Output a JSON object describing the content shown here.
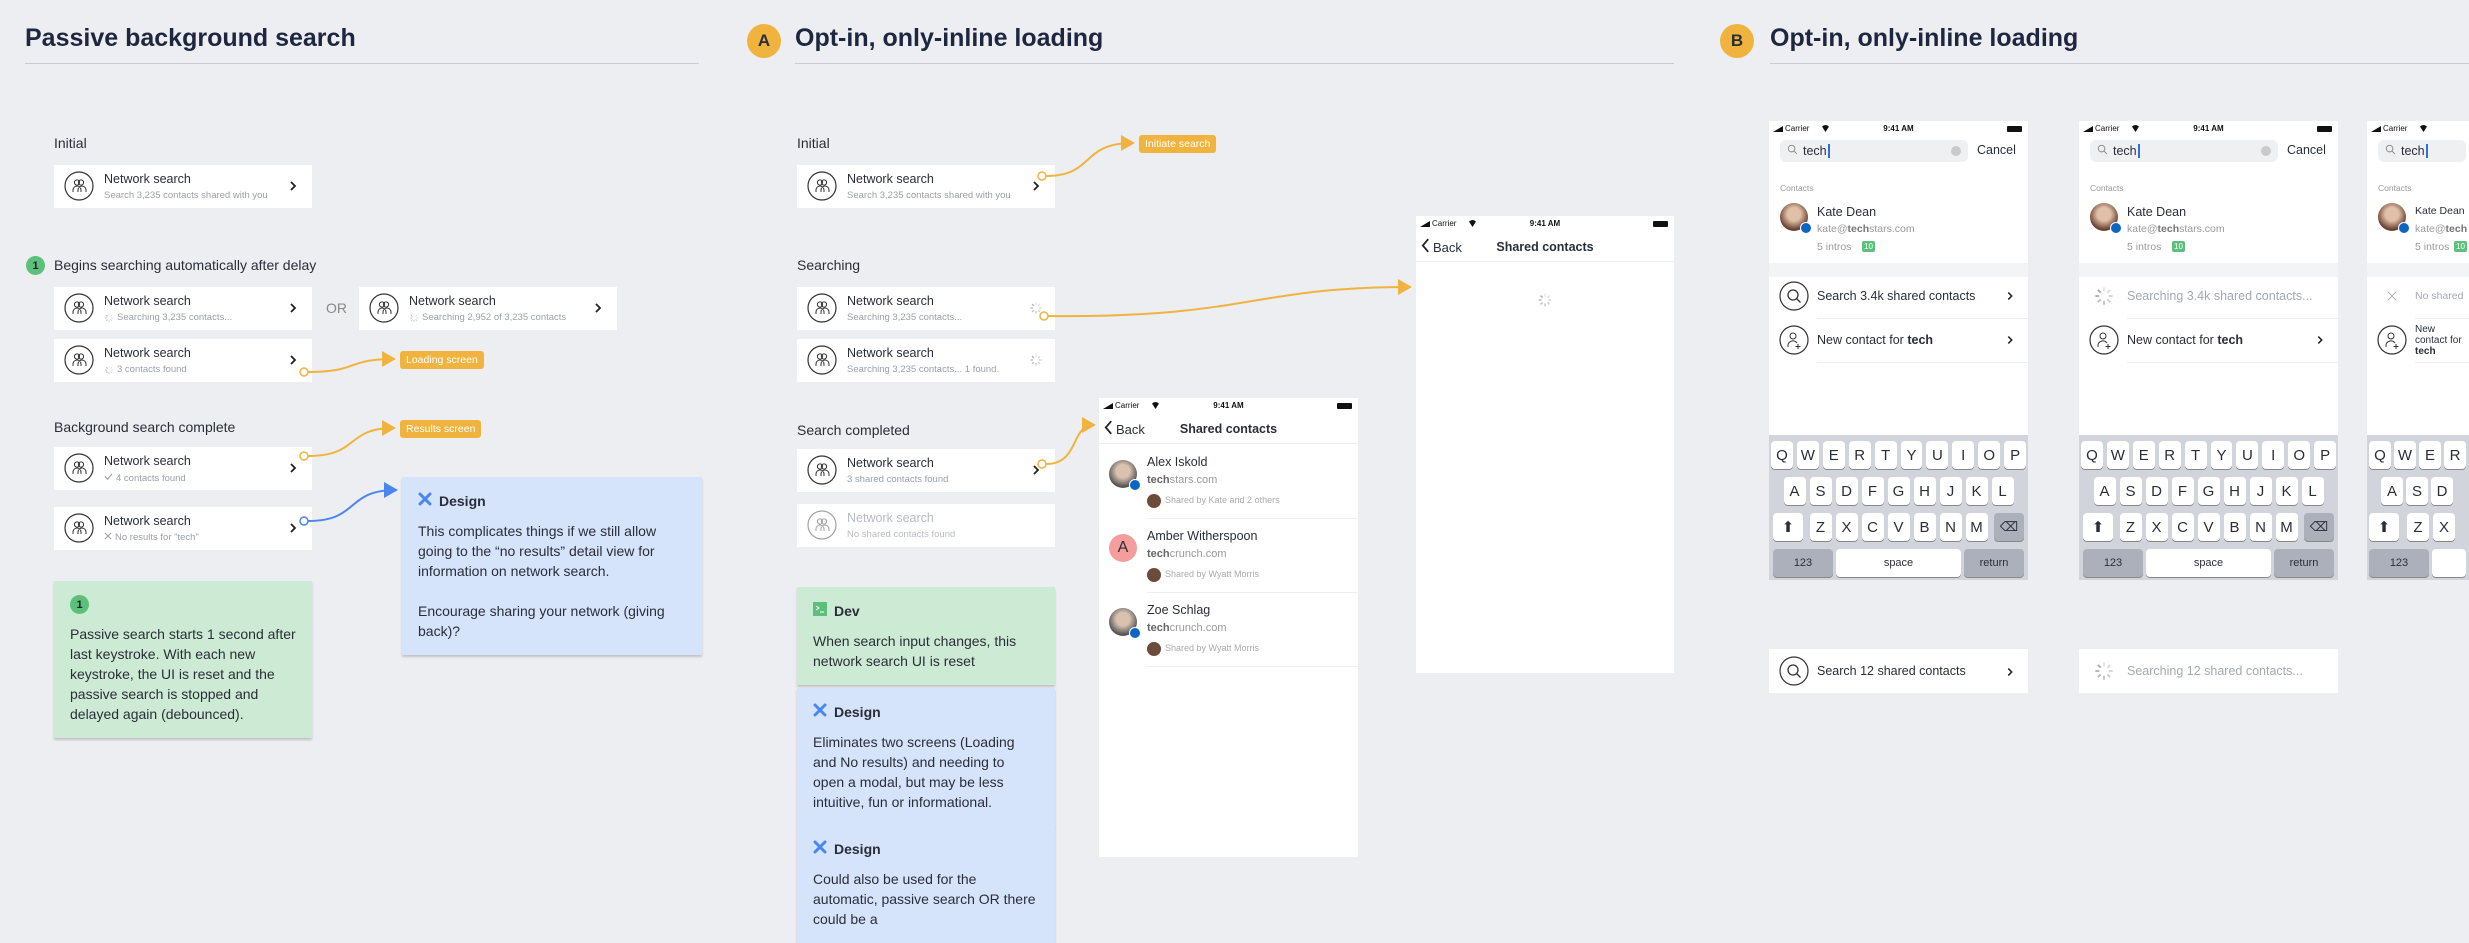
{
  "colors": {
    "background": "#edeef1",
    "accent_orange": "#f0b33e",
    "connector_blue": "#4a86f0",
    "note_green": "#cdebd4",
    "note_blue": "#d5e3fb",
    "step_green": "#5cc07a"
  },
  "sections": [
    {
      "title": "Passive background search"
    },
    {
      "badge": "A",
      "title": "Opt-in, only-inline loading"
    },
    {
      "badge": "B",
      "title": "Opt-in, only-inline loading"
    }
  ],
  "passive": {
    "initial_label": "Initial",
    "step_badge": "1",
    "delay_label": "Begins searching automatically after delay",
    "or_label": "OR",
    "complete_label": "Background search complete",
    "cards": [
      {
        "title": "Network search",
        "subtitle": "Search 3,235 contacts shared with you",
        "status_icon": "none",
        "trailing": "chevron"
      },
      {
        "title": "Network search",
        "subtitle": "Searching 3,235 contacts...",
        "status_icon": "spinner",
        "trailing": "chevron"
      },
      {
        "title": "Network search",
        "subtitle": "Searching 2,952 of 3,235 contacts",
        "status_icon": "spinner",
        "trailing": "chevron"
      },
      {
        "title": "Network search",
        "subtitle": "3 contacts found",
        "status_icon": "spinner",
        "trailing": "chevron"
      },
      {
        "title": "Network search",
        "subtitle": "4 contacts found",
        "status_icon": "check",
        "trailing": "chevron"
      },
      {
        "title": "Network search",
        "subtitle": "No results for \"tech\"",
        "status_icon": "x",
        "trailing": "chevron"
      }
    ],
    "tags": {
      "loading": "Loading screen",
      "results": "Results screen"
    },
    "design_note": {
      "label": "Design",
      "p1": "This complicates things if we still allow going to the “no results” detail view for information on network search.",
      "p2": "Encourage sharing your network (giving back)?"
    },
    "step_note": {
      "badge": "1",
      "text": "Passive search starts 1 second after last keystroke. With each new keystroke, the UI is reset and the passive search is stopped and delayed again (debounced)."
    }
  },
  "inline_a": {
    "initial_label": "Initial",
    "searching_label": "Searching",
    "completed_label": "Search completed",
    "cards": [
      {
        "title": "Network search",
        "subtitle": "Search 3,235 contacts shared with you",
        "status_icon": "none",
        "trailing": "chevron"
      },
      {
        "title": "Network search",
        "subtitle": "Searching 3,235 contacts...",
        "status_icon": "none",
        "trailing": "spinner"
      },
      {
        "title": "Network search",
        "subtitle": "Searching 3,235 contacts... 1 found.",
        "status_icon": "none",
        "trailing": "spinner"
      },
      {
        "title": "Network search",
        "subtitle": "3 shared contacts found",
        "status_icon": "none",
        "trailing": "chevron"
      },
      {
        "title": "Network search",
        "subtitle": "No shared contacts found",
        "status_icon": "none",
        "trailing": "none"
      }
    ],
    "tags": {
      "initiate": "Initiate search"
    },
    "notes": [
      {
        "label": "Dev",
        "text": "When search input changes, this network search UI is reset"
      },
      {
        "label": "Design",
        "text": "Eliminates two screens (Loading and No results) and needing to open a modal, but may be less intuitive, fun or informational."
      },
      {
        "label": "Design",
        "text": "Could also be used for the automatic, passive search OR there could be a"
      }
    ],
    "status": {
      "carrier": "Carrier",
      "time": "9:41 AM"
    },
    "nav": {
      "back": "Back",
      "title": "Shared contacts"
    },
    "results": [
      {
        "name": "Alex Iskold",
        "domain_bold": "tech",
        "domain_rest": "stars.com",
        "shared": "Shared by Kate and 2 others",
        "avatar": "photo"
      },
      {
        "name": "Amber Witherspoon",
        "domain_bold": "tech",
        "domain_rest": "crunch.com",
        "shared": "Shared by Wyatt Morris",
        "avatar": "A"
      },
      {
        "name": "Zoe Schlag",
        "domain_bold": "tech",
        "domain_rest": "crunch.com",
        "shared": "Shared by Wyatt Morris",
        "avatar": "photo"
      }
    ]
  },
  "inline_b": {
    "status": {
      "carrier": "Carrier",
      "time": "9:41 AM"
    },
    "search_value": "tech",
    "cancel": "Cancel",
    "contacts_header": "Contacts",
    "contact": {
      "name": "Kate Dean",
      "email_pre": "kate@",
      "email_bold": "tech",
      "email_post": "stars.com",
      "intros": "5 intros",
      "badge": "10"
    },
    "network_rows": [
      "Search 3.4k shared contacts",
      "Searching 3.4k shared contacts...",
      "No shared"
    ],
    "new_contact_pre": "New contact for ",
    "new_contact_bold": "tech",
    "keyboard": {
      "row1": [
        "Q",
        "W",
        "E",
        "R",
        "T",
        "Y",
        "U",
        "I",
        "O",
        "P"
      ],
      "row2": [
        "A",
        "S",
        "D",
        "F",
        "G",
        "H",
        "J",
        "K",
        "L"
      ],
      "row3": [
        "Z",
        "X",
        "C",
        "V",
        "B",
        "N",
        "M"
      ],
      "num": "123",
      "space": "space",
      "return": "return"
    },
    "bottom_rows": [
      "Search 12 shared contacts",
      "Searching 12 shared contacts..."
    ]
  }
}
